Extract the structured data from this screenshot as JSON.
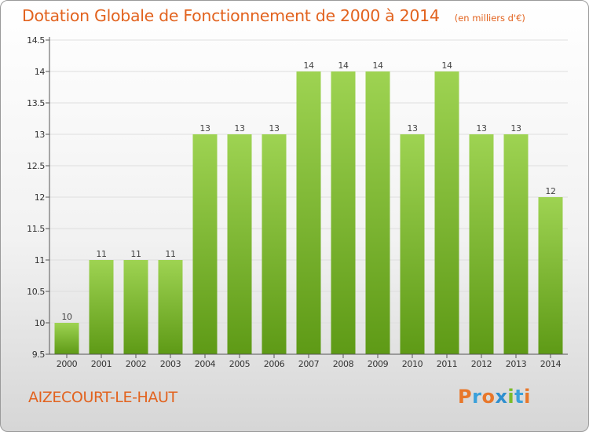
{
  "title": "Dotation Globale de Fonctionnement de 2000 à 2014",
  "subtitle": "(en milliers d'€)",
  "footer": {
    "city": "AIZECOURT-LE-HAUT",
    "logo": "Proxiti"
  },
  "colors": {
    "title": "#e2631f",
    "bar_top": "#9ed352",
    "bar_bottom": "#5e9a16",
    "grid": "#dedede",
    "axis": "#555555",
    "logo_letters": [
      "#e8772a",
      "#3aa0da",
      "#e8772a",
      "#2f8fcf",
      "#7cbc2a",
      "#3aa0da",
      "#e8772a"
    ]
  },
  "chart_data": {
    "type": "bar",
    "title": "Dotation Globale de Fonctionnement de 2000 à 2014",
    "subtitle": "(en milliers d'€)",
    "xlabel": "",
    "ylabel": "",
    "categories": [
      "2000",
      "2001",
      "2002",
      "2003",
      "2004",
      "2005",
      "2006",
      "2007",
      "2008",
      "2009",
      "2010",
      "2011",
      "2012",
      "2013",
      "2014"
    ],
    "values": [
      10,
      11,
      11,
      11,
      13,
      13,
      13,
      14,
      14,
      14,
      13,
      14,
      13,
      13,
      12
    ],
    "data_labels": [
      "10",
      "11",
      "11",
      "11",
      "13",
      "13",
      "13",
      "14",
      "14",
      "14",
      "13",
      "14",
      "13",
      "13",
      "12"
    ],
    "ylim": [
      9.5,
      14.5
    ],
    "yticks": [
      9.5,
      10,
      10.5,
      11,
      11.5,
      12,
      12.5,
      13,
      13.5,
      14,
      14.5
    ],
    "ytick_labels": [
      "9.5",
      "10",
      "10.5",
      "11",
      "11.5",
      "12",
      "12.5",
      "13",
      "13.5",
      "14",
      "14.5"
    ],
    "grid": true,
    "legend": "none"
  }
}
